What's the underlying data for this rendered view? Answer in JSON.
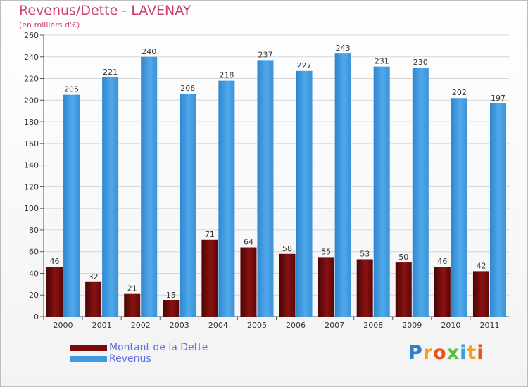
{
  "title": "Revenus/Dette - LAVENAY",
  "subtitle": "(en milliers d'€)",
  "logo_text": "Proxiti",
  "colors": {
    "debt": "#7a0a0a",
    "revenue": "#3f9be0",
    "title": "#c8416f",
    "legend_text": "#5b6ee1"
  },
  "chart_data": {
    "type": "bar",
    "title": "Revenus/Dette - LAVENAY",
    "ylabel": "(en milliers d'€)",
    "xlabel": "",
    "categories": [
      "2000",
      "2001",
      "2002",
      "2003",
      "2004",
      "2005",
      "2006",
      "2007",
      "2008",
      "2009",
      "2010",
      "2011"
    ],
    "series": [
      {
        "name": "Montant de la Dette",
        "values": [
          46,
          32,
          21,
          15,
          71,
          64,
          58,
          55,
          53,
          50,
          46,
          42
        ]
      },
      {
        "name": "Revenus",
        "values": [
          205,
          221,
          240,
          206,
          218,
          237,
          227,
          243,
          231,
          230,
          202,
          197
        ]
      }
    ],
    "ylim": [
      0,
      260
    ],
    "yticks": [
      0,
      20,
      40,
      60,
      80,
      100,
      120,
      140,
      160,
      180,
      200,
      220,
      240,
      260
    ],
    "grid": true,
    "legend_position": "bottom-left"
  }
}
